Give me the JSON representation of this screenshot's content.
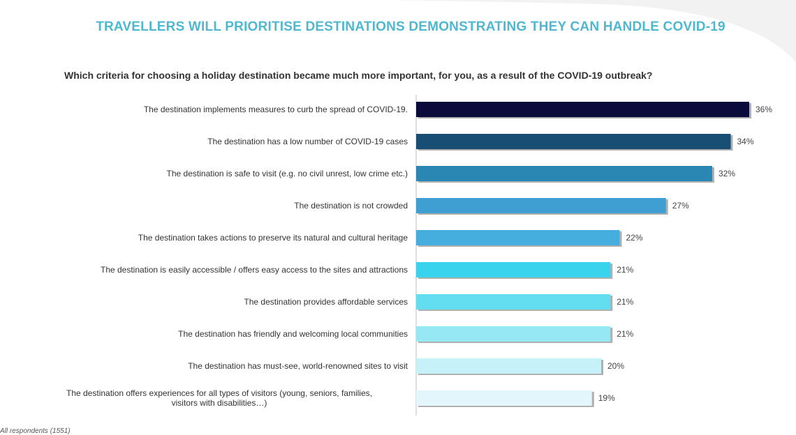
{
  "title": "TRAVELLERS WILL PRIORITISE DESTINATIONS DEMONSTRATING THEY CAN HANDLE COVID-19",
  "subtitle": "Which criteria for choosing a holiday destination became much more important, for you, as a result of the COVID-19 outbreak?",
  "footnote": "All respondents (1551)",
  "colors": [
    "#0b0b3b",
    "#184e73",
    "#2a86b3",
    "#3f9fd2",
    "#45aede",
    "#3ad3ee",
    "#63def0",
    "#97e8f5",
    "#c6f1f9",
    "#e3f6fb"
  ],
  "chart_data": {
    "type": "bar",
    "orientation": "horizontal",
    "categories": [
      "The destination implements measures to curb the spread of COVID-19.",
      "The destination has a low number of COVID-19 cases",
      "The destination is safe to visit (e.g. no civil unrest, low crime etc.)",
      "The destination is not crowded",
      "The destination takes actions to preserve its natural and cultural heritage",
      "The destination is easily accessible / offers easy access to the sites and attractions",
      "The destination provides affordable services",
      "The destination has friendly and welcoming local communities",
      "The destination has must-see, world-renowned sites to visit",
      "The destination offers experiences for all types of visitors (young, seniors, families, visitors with disabilities…)"
    ],
    "values": [
      36,
      34,
      32,
      27,
      22,
      21,
      21,
      21,
      20,
      19
    ],
    "value_labels": [
      "36%",
      "34%",
      "32%",
      "27%",
      "22%",
      "21%",
      "21%",
      "21%",
      "20%",
      "19%"
    ],
    "unit": "%",
    "xlim": [
      0,
      36
    ],
    "grid": false,
    "legend": "none"
  }
}
